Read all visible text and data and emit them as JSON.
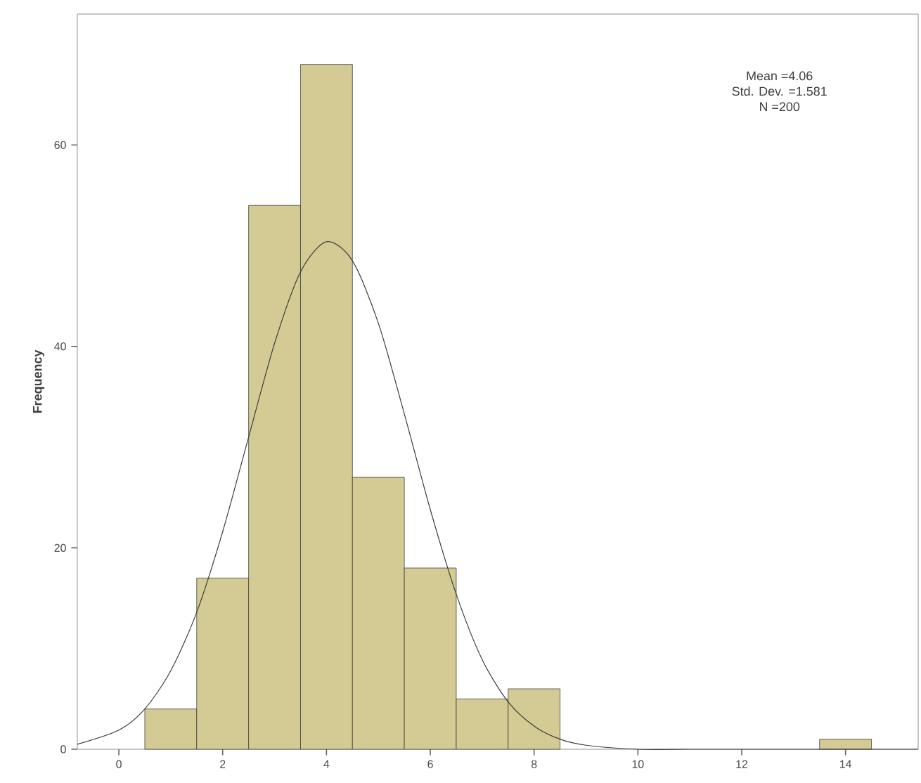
{
  "chart_data": {
    "type": "histogram",
    "ylabel": "Frequency",
    "bins": [
      0.5,
      1.5,
      2.5,
      3.5,
      4.5,
      5.5,
      6.5,
      7.5,
      8.5,
      9.5,
      10.5,
      11.5,
      12.5,
      13.5,
      14.5
    ],
    "values": [
      4,
      17,
      54,
      68,
      27,
      18,
      5,
      6,
      0,
      0,
      0,
      0,
      0,
      1
    ],
    "color": "#d3cb93",
    "series": [
      {
        "type": "line",
        "color": "#3c3c3c",
        "x": [
          -0.8,
          0,
          0.5,
          1,
          1.5,
          2,
          2.5,
          3,
          3.5,
          4,
          4.5,
          5,
          5.5,
          6,
          6.5,
          7,
          7.5,
          8,
          8.5,
          9,
          10,
          11,
          12,
          13,
          14,
          15,
          15.4
        ],
        "values": [
          0.5,
          1.9,
          4,
          7.8,
          13.6,
          21.6,
          31,
          40.3,
          47.4,
          50.4,
          48.5,
          42.3,
          33.3,
          23.8,
          15.4,
          8.9,
          4.7,
          2.3,
          1,
          0.4,
          0,
          0,
          0,
          0,
          0,
          0,
          0
        ]
      }
    ],
    "xlim": [
      -0.8,
      15.4
    ],
    "ylim": [
      0,
      73
    ],
    "xticks": [
      0,
      2,
      4,
      6,
      8,
      10,
      12,
      14
    ],
    "yticks": [
      0,
      20,
      40,
      60
    ],
    "grid": false,
    "annotations": [
      "Mean =4.06",
      "Std. Dev. =1.581",
      "N =200"
    ]
  }
}
